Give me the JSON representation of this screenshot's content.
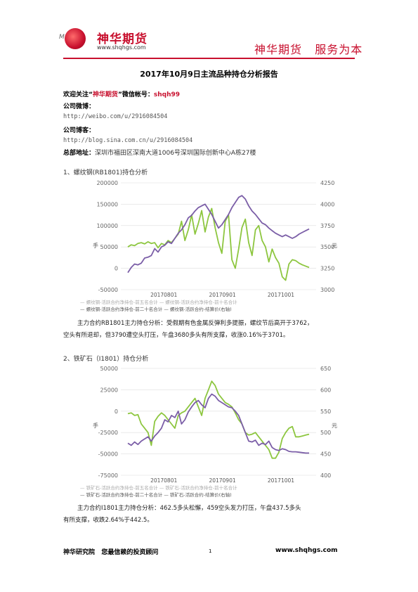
{
  "header": {
    "logo_name": "神华期货",
    "logo_url": "www.shqhgs.com",
    "logo_mark": "M",
    "slogan": "神华期货   服务为本",
    "brand_color": "#c8102e"
  },
  "title": "2017年10月9日主流品种持仓分析报告",
  "intro": {
    "follow_prefix": "欢迎关注“",
    "follow_brand": "神华期货",
    "follow_suffix": "”微信帐号：",
    "wechat_id": "shqh99",
    "weibo_label": "公司微博：",
    "weibo_url": "http://weibo.com/u/2916084504",
    "blog_label": "公司博客：",
    "blog_url": "http://blog.sina.com.cn/u/2916084504",
    "address_label": "总部地址：",
    "address": "深圳市福田区深南大道1006号深圳国际创新中心A栋27楼"
  },
  "sections": [
    {
      "heading": "1、螺纹钢(RB1801)持仓分析",
      "analysis_line1": "主力合约RB1801主力持仓分析：受假期有色金属反弹利多提振，螺纹节后高开于3762，",
      "analysis_line2": "空头有所退却，但3790遭空头打压，午盘3680多头有所支撑，收涨0.16%于3701。"
    },
    {
      "heading": "2、铁矿石（I1801）持仓分析",
      "analysis_line1": "主力合约I1801主力持仓分析：462.5多头松懈，459空头发力打压，午盘437.5多头",
      "analysis_line2": "有所支撑，收跌2.64%于442.5。"
    }
  ],
  "chart_data": [
    {
      "type": "line",
      "left_ticks": [
        "200000",
        "150000",
        "100000",
        "50000",
        "0",
        "-50000"
      ],
      "right_ticks": [
        "4250",
        "4000",
        "3750",
        "3500",
        "3250",
        "3000"
      ],
      "ylim": [
        -50000,
        200000
      ],
      "y2lim": [
        3000,
        4250
      ],
      "ylabel": "手",
      "y2label": "元",
      "x_ticks": [
        "20170801",
        "20170901",
        "20171001"
      ],
      "legend_row1": "— 螺纹钢-活跃合约净持仓-前五名合计   — 螺纹钢-活跃合约净持仓-前十名合计",
      "legend_row2": "— 螺纹钢-活跃合约净持仓-前二十名合计   — 螺纹钢-活跃合约-结算价(右轴)",
      "series": [
        {
          "name": "螺纹钢-活跃合约净持仓-前二十名合计",
          "color": "#8dc63f",
          "axis": "left",
          "values": [
            50000,
            55000,
            53000,
            58000,
            60000,
            57000,
            62000,
            58000,
            60000,
            48000,
            58000,
            55000,
            65000,
            60000,
            70000,
            80000,
            110000,
            65000,
            90000,
            125000,
            80000,
            105000,
            135000,
            85000,
            120000,
            140000,
            95000,
            60000,
            35000,
            110000,
            125000,
            20000,
            0,
            45000,
            95000,
            115000,
            60000,
            30000,
            90000,
            100000,
            65000,
            50000,
            15000,
            45000,
            25000,
            12000,
            -20000,
            -28000,
            10000,
            20000,
            18000,
            12000,
            8000,
            5000,
            2000
          ]
        },
        {
          "name": "螺纹钢-活跃合约-结算价(右轴)",
          "color": "#7b5ea7",
          "axis": "right",
          "values": [
            3200,
            3260,
            3300,
            3290,
            3310,
            3370,
            3380,
            3400,
            3480,
            3440,
            3500,
            3520,
            3560,
            3540,
            3600,
            3660,
            3700,
            3760,
            3840,
            3870,
            3920,
            3960,
            3980,
            4000,
            3940,
            3880,
            3800,
            3720,
            3760,
            3820,
            3880,
            3960,
            4020,
            4080,
            4100,
            4060,
            3980,
            3920,
            3880,
            3830,
            3780,
            3760,
            3720,
            3690,
            3660,
            3640,
            3620,
            3640,
            3620,
            3600,
            3620,
            3650,
            3670,
            3690,
            3710
          ]
        }
      ]
    },
    {
      "type": "line",
      "left_ticks": [
        "50000",
        "25000",
        "0",
        "-25000",
        "-50000",
        "-75000"
      ],
      "right_ticks": [
        "650",
        "600",
        "550",
        "500",
        "450",
        "400"
      ],
      "ylim": [
        -75000,
        50000
      ],
      "y2lim": [
        400,
        650
      ],
      "ylabel": "手",
      "y2label": "元",
      "x_ticks": [
        "20170801",
        "20170901",
        "20171001"
      ],
      "legend_row1": "— 铁矿石-活跃合约净持仓-前五名合计   — 铁矿石-活跃合约净持仓-前十名合计",
      "legend_row2": "— 铁矿石-活跃合约净持仓-前二十名合计   — 铁矿石-活跃合约-结算价(右轴)",
      "series": [
        {
          "name": "铁矿石-活跃合约净持仓-前二十名合计",
          "color": "#8dc63f",
          "axis": "left",
          "values": [
            -3000,
            -2000,
            -5000,
            -4000,
            -15000,
            -20000,
            -25000,
            -40000,
            -12000,
            -6000,
            -2000,
            -5000,
            -10000,
            -15000,
            -20000,
            -5000,
            -2000,
            0,
            5000,
            10000,
            15000,
            5000,
            -5000,
            15000,
            25000,
            35000,
            30000,
            20000,
            15000,
            10000,
            8000,
            5000,
            -2000,
            -10000,
            -15000,
            -25000,
            -28000,
            -27000,
            -25000,
            -30000,
            -35000,
            -40000,
            -45000,
            -55000,
            -55000,
            -48000,
            -32000,
            -25000,
            -20000,
            -18000,
            -30000,
            -30000,
            -29000,
            -28000,
            -27000
          ]
        },
        {
          "name": "铁矿石-活跃合约-结算价(右轴)",
          "color": "#7b5ea7",
          "axis": "right",
          "values": [
            475,
            470,
            478,
            472,
            480,
            485,
            490,
            480,
            492,
            500,
            510,
            530,
            525,
            540,
            535,
            550,
            520,
            530,
            548,
            560,
            570,
            575,
            565,
            558,
            580,
            590,
            585,
            575,
            570,
            565,
            560,
            558,
            550,
            540,
            520,
            500,
            480,
            478,
            482,
            470,
            475,
            472,
            480,
            465,
            460,
            458,
            462,
            460,
            456,
            455,
            455,
            454,
            453,
            452,
            452
          ]
        }
      ]
    }
  ],
  "footer": {
    "institute": "神华研究院   您最信赖的投资顾问",
    "page": "1",
    "url": "www.shqhgs.com"
  }
}
